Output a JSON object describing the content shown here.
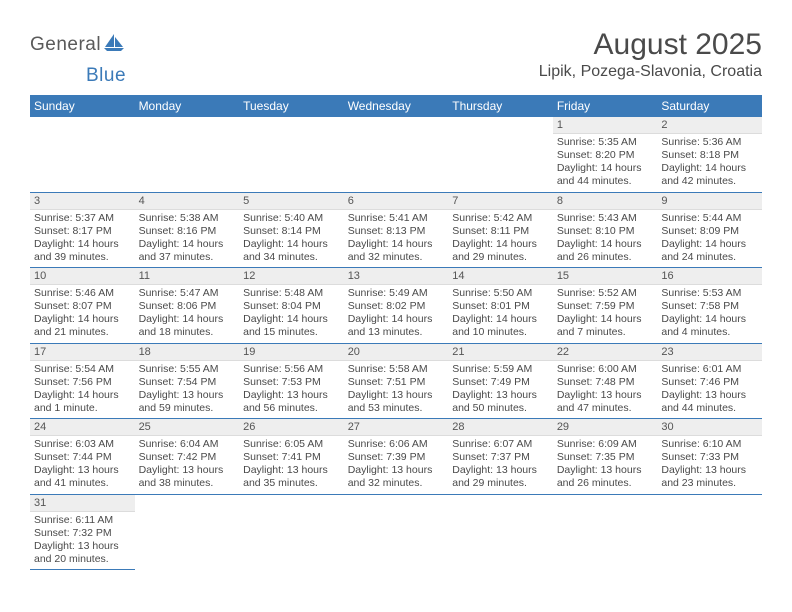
{
  "logo": {
    "word1": "General",
    "word2": "Blue",
    "sail_color": "#3b7ab8"
  },
  "header": {
    "month_title": "August 2025",
    "location": "Lipik, Pozega-Slavonia, Croatia"
  },
  "colors": {
    "header_bg": "#3b7ab8",
    "header_text": "#ffffff",
    "daynum_bg": "#eeeeee",
    "text": "#4a4a4a",
    "row_border": "#3b7ab8"
  },
  "calendar": {
    "day_headers": [
      "Sunday",
      "Monday",
      "Tuesday",
      "Wednesday",
      "Thursday",
      "Friday",
      "Saturday"
    ],
    "weeks": [
      [
        null,
        null,
        null,
        null,
        null,
        {
          "n": "1",
          "sunrise": "5:35 AM",
          "sunset": "8:20 PM",
          "daylight": "14 hours and 44 minutes."
        },
        {
          "n": "2",
          "sunrise": "5:36 AM",
          "sunset": "8:18 PM",
          "daylight": "14 hours and 42 minutes."
        }
      ],
      [
        {
          "n": "3",
          "sunrise": "5:37 AM",
          "sunset": "8:17 PM",
          "daylight": "14 hours and 39 minutes."
        },
        {
          "n": "4",
          "sunrise": "5:38 AM",
          "sunset": "8:16 PM",
          "daylight": "14 hours and 37 minutes."
        },
        {
          "n": "5",
          "sunrise": "5:40 AM",
          "sunset": "8:14 PM",
          "daylight": "14 hours and 34 minutes."
        },
        {
          "n": "6",
          "sunrise": "5:41 AM",
          "sunset": "8:13 PM",
          "daylight": "14 hours and 32 minutes."
        },
        {
          "n": "7",
          "sunrise": "5:42 AM",
          "sunset": "8:11 PM",
          "daylight": "14 hours and 29 minutes."
        },
        {
          "n": "8",
          "sunrise": "5:43 AM",
          "sunset": "8:10 PM",
          "daylight": "14 hours and 26 minutes."
        },
        {
          "n": "9",
          "sunrise": "5:44 AM",
          "sunset": "8:09 PM",
          "daylight": "14 hours and 24 minutes."
        }
      ],
      [
        {
          "n": "10",
          "sunrise": "5:46 AM",
          "sunset": "8:07 PM",
          "daylight": "14 hours and 21 minutes."
        },
        {
          "n": "11",
          "sunrise": "5:47 AM",
          "sunset": "8:06 PM",
          "daylight": "14 hours and 18 minutes."
        },
        {
          "n": "12",
          "sunrise": "5:48 AM",
          "sunset": "8:04 PM",
          "daylight": "14 hours and 15 minutes."
        },
        {
          "n": "13",
          "sunrise": "5:49 AM",
          "sunset": "8:02 PM",
          "daylight": "14 hours and 13 minutes."
        },
        {
          "n": "14",
          "sunrise": "5:50 AM",
          "sunset": "8:01 PM",
          "daylight": "14 hours and 10 minutes."
        },
        {
          "n": "15",
          "sunrise": "5:52 AM",
          "sunset": "7:59 PM",
          "daylight": "14 hours and 7 minutes."
        },
        {
          "n": "16",
          "sunrise": "5:53 AM",
          "sunset": "7:58 PM",
          "daylight": "14 hours and 4 minutes."
        }
      ],
      [
        {
          "n": "17",
          "sunrise": "5:54 AM",
          "sunset": "7:56 PM",
          "daylight": "14 hours and 1 minute."
        },
        {
          "n": "18",
          "sunrise": "5:55 AM",
          "sunset": "7:54 PM",
          "daylight": "13 hours and 59 minutes."
        },
        {
          "n": "19",
          "sunrise": "5:56 AM",
          "sunset": "7:53 PM",
          "daylight": "13 hours and 56 minutes."
        },
        {
          "n": "20",
          "sunrise": "5:58 AM",
          "sunset": "7:51 PM",
          "daylight": "13 hours and 53 minutes."
        },
        {
          "n": "21",
          "sunrise": "5:59 AM",
          "sunset": "7:49 PM",
          "daylight": "13 hours and 50 minutes."
        },
        {
          "n": "22",
          "sunrise": "6:00 AM",
          "sunset": "7:48 PM",
          "daylight": "13 hours and 47 minutes."
        },
        {
          "n": "23",
          "sunrise": "6:01 AM",
          "sunset": "7:46 PM",
          "daylight": "13 hours and 44 minutes."
        }
      ],
      [
        {
          "n": "24",
          "sunrise": "6:03 AM",
          "sunset": "7:44 PM",
          "daylight": "13 hours and 41 minutes."
        },
        {
          "n": "25",
          "sunrise": "6:04 AM",
          "sunset": "7:42 PM",
          "daylight": "13 hours and 38 minutes."
        },
        {
          "n": "26",
          "sunrise": "6:05 AM",
          "sunset": "7:41 PM",
          "daylight": "13 hours and 35 minutes."
        },
        {
          "n": "27",
          "sunrise": "6:06 AM",
          "sunset": "7:39 PM",
          "daylight": "13 hours and 32 minutes."
        },
        {
          "n": "28",
          "sunrise": "6:07 AM",
          "sunset": "7:37 PM",
          "daylight": "13 hours and 29 minutes."
        },
        {
          "n": "29",
          "sunrise": "6:09 AM",
          "sunset": "7:35 PM",
          "daylight": "13 hours and 26 minutes."
        },
        {
          "n": "30",
          "sunrise": "6:10 AM",
          "sunset": "7:33 PM",
          "daylight": "13 hours and 23 minutes."
        }
      ],
      [
        {
          "n": "31",
          "sunrise": "6:11 AM",
          "sunset": "7:32 PM",
          "daylight": "13 hours and 20 minutes."
        },
        null,
        null,
        null,
        null,
        null,
        null
      ]
    ]
  },
  "labels": {
    "sunrise_prefix": "Sunrise: ",
    "sunset_prefix": "Sunset: ",
    "daylight_prefix": "Daylight: "
  }
}
